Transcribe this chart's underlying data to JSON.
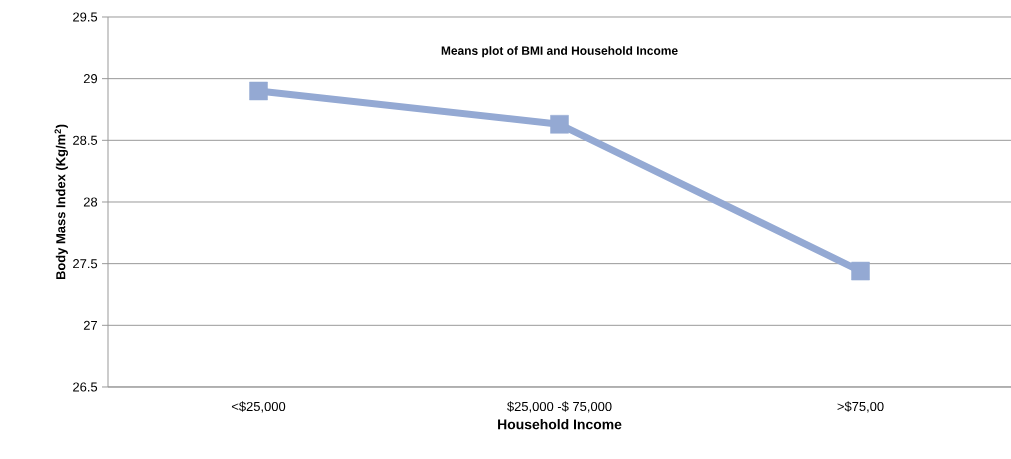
{
  "chart_data": {
    "type": "line",
    "title": "Means plot of BMI and Household Income",
    "xlabel": "Household Income",
    "ylabel": "Body Mass Index (Kg/m$^{2}$)",
    "categories": [
      "<$25,000",
      "$25,000 -$ 75,000",
      ">$75,00"
    ],
    "series": [
      {
        "color": "#94a9d3",
        "values": [
          28.9,
          28.63,
          27.44
        ]
      }
    ],
    "ylim": [
      26.5,
      29.5
    ],
    "yticks": [
      26.5,
      27,
      27.5,
      28,
      28.5,
      29,
      29.5
    ],
    "grid": "y",
    "marker": "square",
    "line_style": "solid"
  }
}
